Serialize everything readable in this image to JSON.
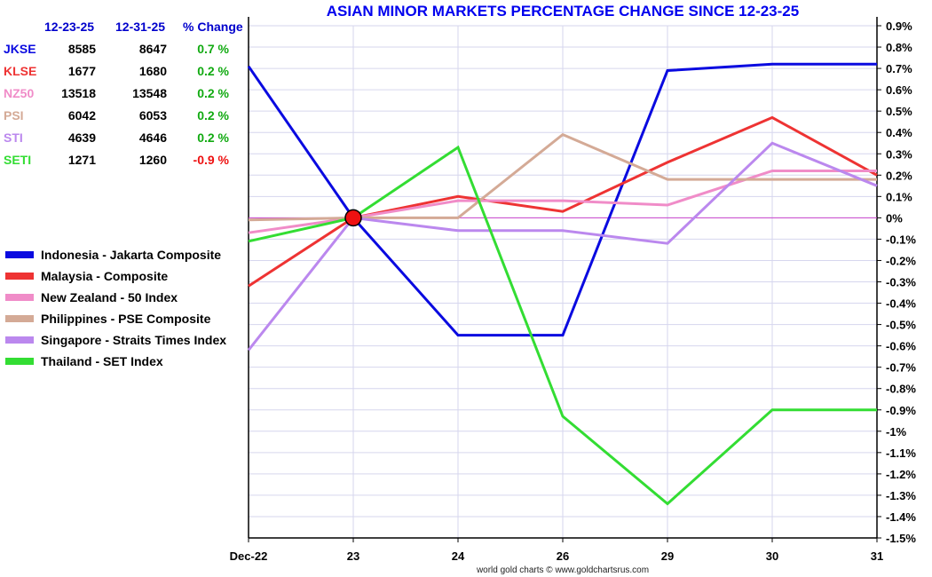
{
  "chart_data": {
    "type": "line",
    "title": "ASIAN MINOR MARKETS PERCENTAGE CHANGE SINCE 12-23-25",
    "xlabel": "",
    "ylabel": "",
    "x": [
      "Dec-22",
      "23",
      "24",
      "26",
      "29",
      "30",
      "31"
    ],
    "ylim": [
      -1.5,
      0.9
    ],
    "yticks": [
      "0.9%",
      "0.8%",
      "0.7%",
      "0.6%",
      "0.5%",
      "0.4%",
      "0.3%",
      "0.2%",
      "0.1%",
      "0%",
      "-0.1%",
      "-0.2%",
      "-0.3%",
      "-0.4%",
      "-0.5%",
      "-0.6%",
      "-0.7%",
      "-0.8%",
      "-0.9%",
      "-1%",
      "-1.1%",
      "-1.2%",
      "-1.3%",
      "-1.4%",
      "-1.5%"
    ],
    "grid": true,
    "legend_position": "left",
    "credit": "world gold charts © www.goldchartsrus.com",
    "series": [
      {
        "name": "Indonesia - Jakarta Composite",
        "color": "#0a0ae0",
        "values": [
          0.71,
          0.0,
          -0.55,
          -0.55,
          0.69,
          0.72,
          0.72
        ]
      },
      {
        "name": "Malaysia - Composite",
        "color": "#ee3333",
        "values": [
          -0.32,
          0.0,
          0.1,
          0.03,
          0.26,
          0.47,
          0.2
        ]
      },
      {
        "name": "New Zealand - 50 Index",
        "color": "#f08cc8",
        "values": [
          -0.07,
          0.0,
          0.08,
          0.08,
          0.06,
          0.22,
          0.22
        ]
      },
      {
        "name": "Philippines - PSE Composite",
        "color": "#d4aa96",
        "values": [
          -0.01,
          0.0,
          0.0,
          0.39,
          0.18,
          0.18,
          0.18
        ]
      },
      {
        "name": "Singapore - Straits Times Index",
        "color": "#bb88ee",
        "values": [
          -0.62,
          0.0,
          -0.06,
          -0.06,
          -0.12,
          0.35,
          0.15
        ]
      },
      {
        "name": "Thailand - SET Index",
        "color": "#33dd33",
        "values": [
          -0.11,
          0.0,
          0.33,
          -0.93,
          -1.34,
          -0.9,
          -0.9
        ]
      }
    ]
  },
  "table": {
    "headers": [
      "12-23-25",
      "12-31-25",
      "% Change"
    ],
    "rows": [
      {
        "code": "JKSE",
        "color": "#0a0ae0",
        "start": "8585",
        "end": "8647",
        "change": "0.7 %",
        "change_color": "#11aa11"
      },
      {
        "code": "KLSE",
        "color": "#ee3333",
        "start": "1677",
        "end": "1680",
        "change": "0.2 %",
        "change_color": "#11aa11"
      },
      {
        "code": "NZ50",
        "color": "#f08cc8",
        "start": "13518",
        "end": "13548",
        "change": "0.2 %",
        "change_color": "#11aa11"
      },
      {
        "code": "PSI",
        "color": "#d4aa96",
        "start": "6042",
        "end": "6053",
        "change": "0.2 %",
        "change_color": "#11aa11"
      },
      {
        "code": "STI",
        "color": "#bb88ee",
        "start": "4639",
        "end": "4646",
        "change": "0.2 %",
        "change_color": "#11aa11"
      },
      {
        "code": "SETI",
        "color": "#33dd33",
        "start": "1271",
        "end": "1260",
        "change": "-0.9 %",
        "change_color": "#ee1111"
      }
    ]
  }
}
